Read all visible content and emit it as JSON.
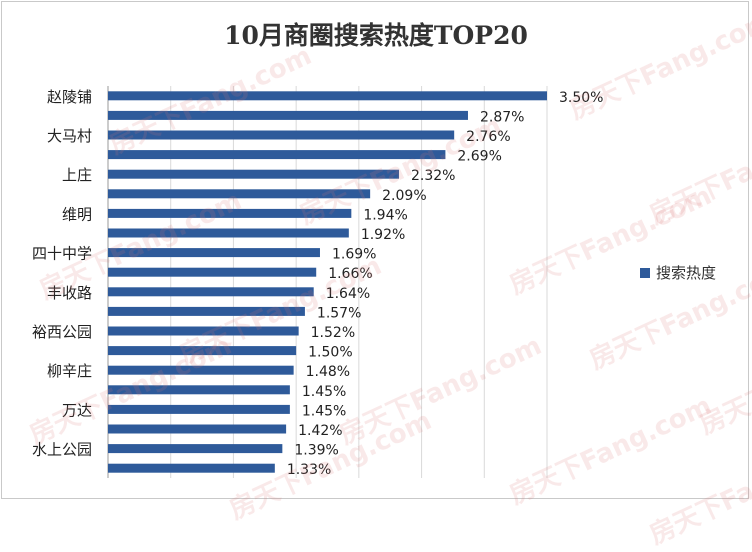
{
  "chart_data": {
    "type": "bar",
    "orientation": "horizontal",
    "title": "10月商圈搜索热度TOP20",
    "categories": [
      "赵陵铺",
      "",
      "大马村",
      "",
      "上庄",
      "",
      "维明",
      "",
      "四十中学",
      "",
      "丰收路",
      "",
      "裕西公园",
      "",
      "柳辛庄",
      "",
      "万达",
      "",
      "水上公园",
      ""
    ],
    "series": [
      {
        "name": "搜索热度",
        "values": [
          3.5,
          2.87,
          2.76,
          2.69,
          2.32,
          2.09,
          1.94,
          1.92,
          1.69,
          1.66,
          1.64,
          1.57,
          1.52,
          1.5,
          1.48,
          1.45,
          1.45,
          1.42,
          1.39,
          1.33
        ],
        "labels": [
          "3.50%",
          "2.87%",
          "2.76%",
          "2.69%",
          "2.32%",
          "2.09%",
          "1.94%",
          "1.92%",
          "1.69%",
          "1.66%",
          "1.64%",
          "1.57%",
          "1.52%",
          "1.50%",
          "1.48%",
          "1.45%",
          "1.45%",
          "1.42%",
          "1.39%",
          "1.33%"
        ]
      }
    ],
    "xlim": [
      0,
      3.5
    ],
    "grid": "vertical",
    "legend_position": "right",
    "bar_color": "#2e5a9a"
  },
  "watermark": "房天下Fang.com"
}
